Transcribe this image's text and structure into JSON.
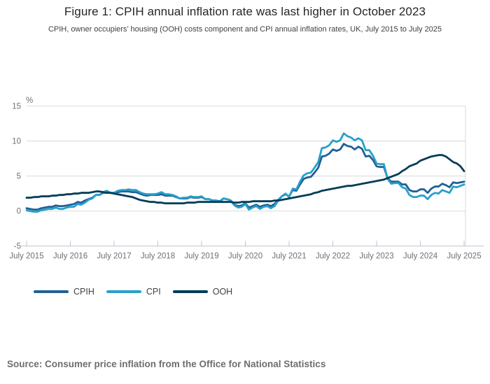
{
  "chart_data": {
    "type": "line",
    "title": "Figure 1: CPIH annual inflation rate was last higher in October 2023",
    "subtitle": "CPIH, owner occupiers’ housing (OOH) costs component and CPI annual inflation rates, UK, July 2015 to July 2025",
    "unit_label": "%",
    "ylim": [
      -5,
      15
    ],
    "y_ticks": [
      15,
      10,
      5,
      0,
      -5
    ],
    "grid": "horizontal",
    "legend_position": "bottom-left",
    "x_frequency": "monthly",
    "x_range": "July 2015 to July 2025",
    "x_tick_labels": [
      "July 2015",
      "July 2016",
      "July 2017",
      "July 2018",
      "July 2019",
      "July 2020",
      "July 2021",
      "July 2022",
      "July 2023",
      "July 2024",
      "July 2025"
    ],
    "colors": {
      "grid": "#d9d9d9",
      "axis": "#b9c6d2",
      "tick_text": "#707070",
      "cpih": "#206095",
      "cpi": "#27A0CC",
      "ooh": "#003C57"
    },
    "series": [
      {
        "name": "CPIH",
        "color": "#206095",
        "values": [
          0.4,
          0.3,
          0.2,
          0.2,
          0.4,
          0.5,
          0.6,
          0.6,
          0.8,
          0.7,
          0.7,
          0.8,
          0.9,
          1.0,
          1.3,
          1.2,
          1.5,
          1.7,
          1.9,
          2.3,
          2.3,
          2.6,
          2.7,
          2.6,
          2.6,
          2.7,
          2.8,
          2.8,
          2.8,
          2.7,
          2.7,
          2.5,
          2.3,
          2.2,
          2.3,
          2.3,
          2.3,
          2.4,
          2.2,
          2.2,
          2.2,
          2.0,
          1.8,
          1.8,
          1.8,
          2.0,
          1.9,
          1.9,
          2.0,
          1.7,
          1.7,
          1.5,
          1.5,
          1.4,
          1.8,
          1.7,
          1.5,
          0.9,
          0.7,
          0.8,
          1.1,
          0.5,
          0.7,
          0.9,
          0.6,
          0.8,
          0.9,
          0.7,
          1.0,
          1.6,
          2.1,
          2.4,
          2.1,
          3.0,
          2.9,
          3.8,
          4.6,
          4.8,
          4.9,
          5.5,
          6.2,
          7.8,
          7.9,
          8.2,
          8.8,
          8.6,
          8.8,
          9.6,
          9.3,
          9.2,
          8.8,
          9.2,
          8.9,
          7.8,
          7.9,
          7.3,
          6.4,
          6.3,
          6.3,
          4.7,
          4.2,
          4.2,
          4.2,
          3.8,
          3.8,
          3.0,
          2.8,
          2.8,
          3.1,
          3.1,
          2.6,
          3.2,
          3.5,
          3.5,
          3.9,
          3.7,
          3.4,
          4.1,
          4.0,
          4.1,
          4.2
        ]
      },
      {
        "name": "CPI",
        "color": "#27A0CC",
        "values": [
          0.1,
          0.0,
          -0.1,
          -0.1,
          0.1,
          0.2,
          0.3,
          0.3,
          0.5,
          0.3,
          0.3,
          0.5,
          0.6,
          0.6,
          1.0,
          0.9,
          1.2,
          1.6,
          1.8,
          2.3,
          2.3,
          2.7,
          2.9,
          2.6,
          2.6,
          2.9,
          3.0,
          3.0,
          3.1,
          3.0,
          3.0,
          2.7,
          2.5,
          2.4,
          2.4,
          2.4,
          2.5,
          2.7,
          2.4,
          2.4,
          2.3,
          2.1,
          1.8,
          1.9,
          1.9,
          2.1,
          2.0,
          2.0,
          2.1,
          1.7,
          1.7,
          1.5,
          1.5,
          1.3,
          1.8,
          1.7,
          1.5,
          0.8,
          0.5,
          0.6,
          1.0,
          0.2,
          0.5,
          0.7,
          0.3,
          0.6,
          0.7,
          0.4,
          0.7,
          1.5,
          2.1,
          2.5,
          2.0,
          3.2,
          3.1,
          4.2,
          5.1,
          5.4,
          5.5,
          6.2,
          7.0,
          9.0,
          9.1,
          9.4,
          10.1,
          9.9,
          10.1,
          11.1,
          10.7,
          10.5,
          10.1,
          10.4,
          10.1,
          8.7,
          8.7,
          7.9,
          6.8,
          6.7,
          6.7,
          4.6,
          3.9,
          4.0,
          4.0,
          3.4,
          3.2,
          2.3,
          2.0,
          2.0,
          2.2,
          2.2,
          1.7,
          2.3,
          2.6,
          2.5,
          3.0,
          2.8,
          2.6,
          3.5,
          3.4,
          3.6,
          3.8
        ]
      },
      {
        "name": "OOH",
        "color": "#003C57",
        "values": [
          1.9,
          1.9,
          2.0,
          2.0,
          2.1,
          2.1,
          2.1,
          2.2,
          2.2,
          2.3,
          2.3,
          2.4,
          2.4,
          2.5,
          2.5,
          2.6,
          2.6,
          2.6,
          2.7,
          2.8,
          2.8,
          2.7,
          2.6,
          2.6,
          2.5,
          2.4,
          2.3,
          2.2,
          2.1,
          2.0,
          1.8,
          1.6,
          1.5,
          1.4,
          1.3,
          1.3,
          1.2,
          1.2,
          1.1,
          1.1,
          1.1,
          1.1,
          1.1,
          1.1,
          1.2,
          1.2,
          1.2,
          1.3,
          1.3,
          1.3,
          1.3,
          1.3,
          1.3,
          1.3,
          1.3,
          1.3,
          1.3,
          1.2,
          1.2,
          1.3,
          1.3,
          1.3,
          1.4,
          1.4,
          1.4,
          1.4,
          1.4,
          1.4,
          1.5,
          1.5,
          1.6,
          1.7,
          1.8,
          1.9,
          2.0,
          2.1,
          2.2,
          2.3,
          2.4,
          2.6,
          2.7,
          2.9,
          3.0,
          3.1,
          3.2,
          3.3,
          3.4,
          3.5,
          3.6,
          3.6,
          3.7,
          3.8,
          3.9,
          4.0,
          4.1,
          4.2,
          4.3,
          4.4,
          4.5,
          4.7,
          4.9,
          5.1,
          5.3,
          5.7,
          6.0,
          6.4,
          6.6,
          6.8,
          7.2,
          7.4,
          7.6,
          7.8,
          7.9,
          8.0,
          8.0,
          7.8,
          7.4,
          7.0,
          6.8,
          6.4,
          5.7
        ]
      }
    ]
  },
  "source": {
    "text": "Source: Consumer price inflation from the Office for National Statistics"
  }
}
